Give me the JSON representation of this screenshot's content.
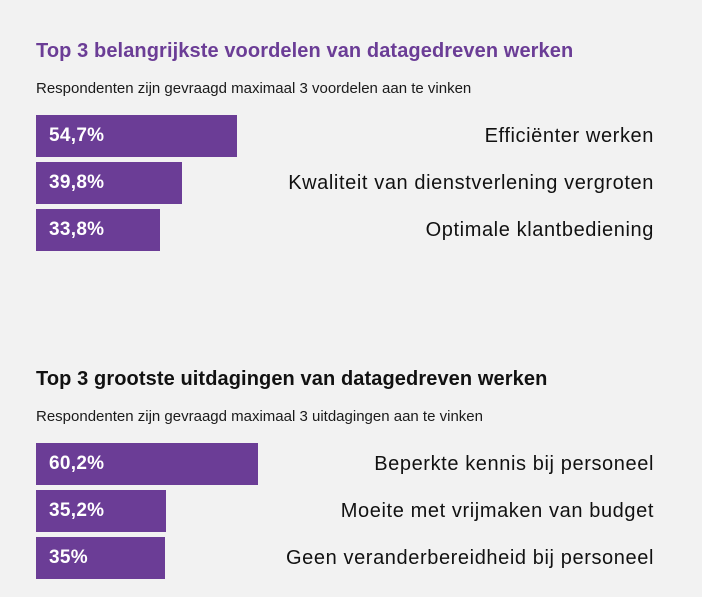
{
  "chart_data": [
    {
      "type": "bar",
      "orientation": "horizontal",
      "title": "Top 3 belangrijkste voordelen van datagedreven werken",
      "subtitle": "Respondenten zijn gevraagd maximaal 3 voordelen aan te vinken",
      "categories": [
        "Efficiënter werken",
        "Kwaliteit van dienstverlening vergroten",
        "Optimale klantbediening"
      ],
      "values": [
        54.7,
        39.8,
        33.8
      ],
      "value_labels": [
        "54,7%",
        "39,8%",
        "33,8%"
      ],
      "unit": "%",
      "bar_color": "#6b3d96",
      "title_color": "#6b3d96"
    },
    {
      "type": "bar",
      "orientation": "horizontal",
      "title": "Top 3 grootste uitdagingen van datagedreven werken",
      "subtitle": "Respondenten zijn gevraagd maximaal 3 uitdagingen aan te vinken",
      "categories": [
        "Beperkte kennis bij personeel",
        "Moeite met vrijmaken van budget",
        "Geen veranderbereidheid bij personeel"
      ],
      "values": [
        60.2,
        35.2,
        35
      ],
      "value_labels": [
        "60,2%",
        "35,2%",
        "35%"
      ],
      "unit": "%",
      "bar_color": "#6b3d96",
      "title_color": "#111111"
    }
  ]
}
